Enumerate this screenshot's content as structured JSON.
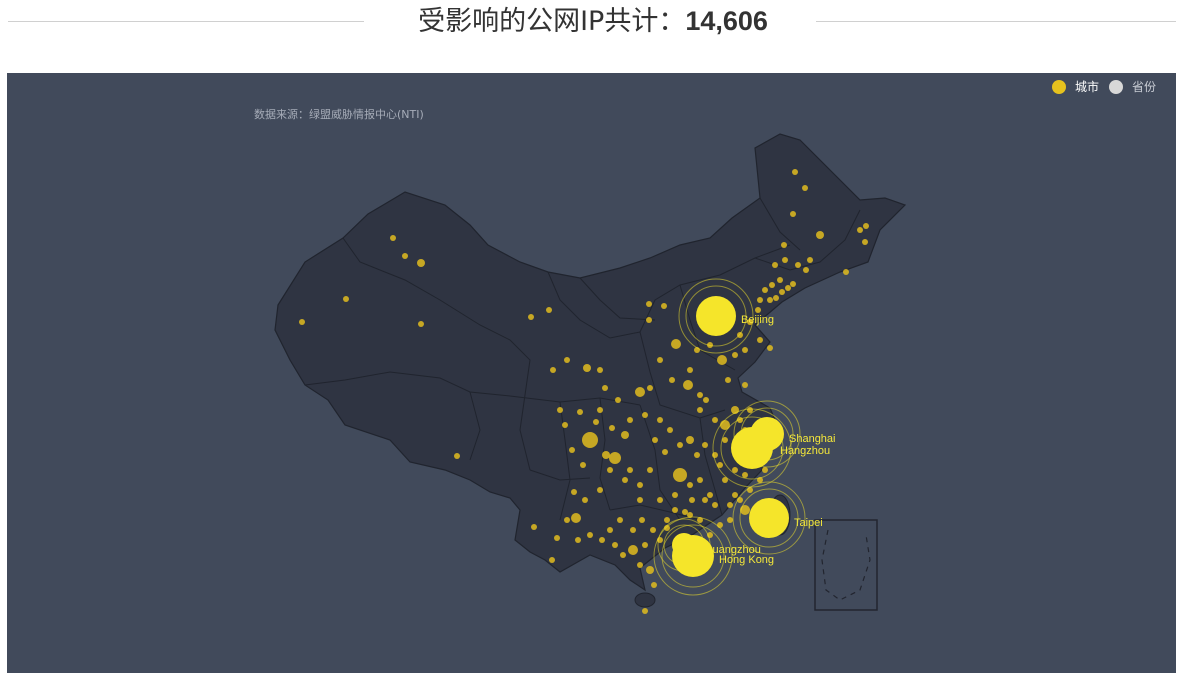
{
  "header": {
    "title_text": "受影响的公网IP共计：",
    "count": "14,606"
  },
  "map": {
    "source_text": "数据来源：绿盟威胁情报中心(NTI)",
    "legend": [
      {
        "label": "城市",
        "color": "#e6c21e"
      },
      {
        "label": "省份",
        "color": "#d8d8d8"
      }
    ],
    "colors": {
      "background": "#414a5b",
      "land": "#2f3442",
      "border": "#20242e",
      "city_dot": "#e0bc1e",
      "major_city": "#f5e52a"
    },
    "major_cities": [
      {
        "name": "Beijing"
      },
      {
        "name": "Shanghai"
      },
      {
        "name": "Hangzhou"
      },
      {
        "name": "Taipei"
      },
      {
        "name": "Guangzhou"
      },
      {
        "name": "Hong Kong"
      }
    ]
  }
}
